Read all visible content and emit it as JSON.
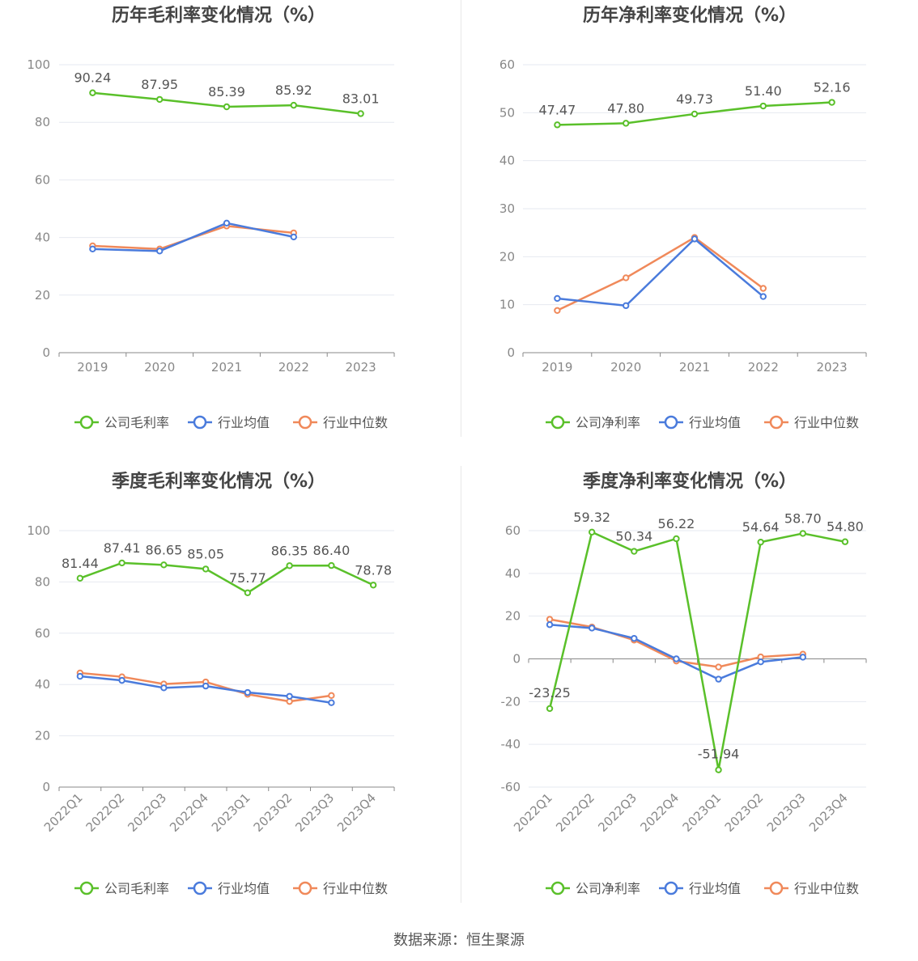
{
  "source": "数据来源：恒生聚源",
  "colors": {
    "company": "#5ac02a",
    "industry_avg": "#4a7bdc",
    "industry_median": "#f0895a",
    "axis": "#888888",
    "grid": "#e6e9f0",
    "title": "#444444",
    "label": "#555555"
  },
  "chart_data": [
    {
      "type": "line",
      "title": "历年毛利率变化情况（%）",
      "categories": [
        "2019",
        "2020",
        "2021",
        "2022",
        "2023"
      ],
      "ylim": [
        0,
        100
      ],
      "yticks": [
        "0",
        "20",
        "40",
        "60",
        "80",
        "100"
      ],
      "legend": "bottom",
      "series": [
        {
          "name": "公司毛利率",
          "values": [
            90.24,
            87.95,
            85.39,
            85.92,
            83.01
          ],
          "labels": [
            "90.24",
            "87.95",
            "85.39",
            "85.92",
            "83.01"
          ]
        },
        {
          "name": "行业均值",
          "values": [
            36.0,
            35.3,
            45.0,
            40.2,
            null
          ]
        },
        {
          "name": "行业中位数",
          "values": [
            37.1,
            36.0,
            44.0,
            41.6,
            null
          ]
        }
      ]
    },
    {
      "type": "line",
      "title": "历年净利率变化情况（%）",
      "categories": [
        "2019",
        "2020",
        "2021",
        "2022",
        "2023"
      ],
      "ylim": [
        0,
        60
      ],
      "yticks": [
        "0",
        "10",
        "20",
        "30",
        "40",
        "50",
        "60"
      ],
      "legend": "bottom",
      "series": [
        {
          "name": "公司净利率",
          "values": [
            47.47,
            47.8,
            49.73,
            51.4,
            52.16
          ],
          "labels": [
            "47.47",
            "47.80",
            "49.73",
            "51.40",
            "52.16"
          ]
        },
        {
          "name": "行业均值",
          "values": [
            11.3,
            9.8,
            23.7,
            11.7,
            null
          ]
        },
        {
          "name": "行业中位数",
          "values": [
            8.8,
            15.6,
            24.0,
            13.4,
            null
          ]
        }
      ]
    },
    {
      "type": "line",
      "title": "季度毛利率变化情况（%）",
      "categories": [
        "2022Q1",
        "2022Q2",
        "2022Q3",
        "2022Q4",
        "2023Q1",
        "2023Q2",
        "2023Q3",
        "2023Q4"
      ],
      "ylim": [
        0,
        100
      ],
      "yticks": [
        "0",
        "20",
        "40",
        "60",
        "80",
        "100"
      ],
      "legend": "bottom",
      "series": [
        {
          "name": "公司毛利率",
          "values": [
            81.44,
            87.41,
            86.65,
            85.05,
            75.77,
            86.35,
            86.4,
            78.78
          ],
          "labels": [
            "81.44",
            "87.41",
            "86.65",
            "85.05",
            "75.77",
            "86.35",
            "86.40",
            "78.78"
          ]
        },
        {
          "name": "行业均值",
          "values": [
            43.2,
            41.6,
            38.7,
            39.4,
            36.9,
            35.4,
            32.9,
            null
          ]
        },
        {
          "name": "行业中位数",
          "values": [
            44.5,
            43.0,
            40.2,
            41.0,
            36.2,
            33.4,
            35.7,
            null
          ]
        }
      ]
    },
    {
      "type": "line",
      "title": "季度净利率变化情况（%）",
      "categories": [
        "2022Q1",
        "2022Q2",
        "2022Q3",
        "2022Q4",
        "2023Q1",
        "2023Q2",
        "2023Q3",
        "2023Q4"
      ],
      "ylim": [
        -60,
        60
      ],
      "yticks": [
        "-60",
        "-40",
        "-20",
        "0",
        "20",
        "40",
        "60"
      ],
      "legend": "bottom",
      "series": [
        {
          "name": "公司净利率",
          "values": [
            -23.25,
            59.32,
            50.34,
            56.22,
            -51.94,
            54.64,
            58.7,
            54.8
          ],
          "labels": [
            "-23.25",
            "59.32",
            "50.34",
            "56.22",
            "-51.94",
            "54.64",
            "58.70",
            "54.80"
          ]
        },
        {
          "name": "行业均值",
          "values": [
            16.0,
            14.4,
            9.6,
            0.0,
            -9.5,
            -1.4,
            0.8,
            null
          ]
        },
        {
          "name": "行业中位数",
          "values": [
            18.5,
            14.9,
            8.8,
            -1.0,
            -3.8,
            0.9,
            2.2,
            null
          ]
        }
      ]
    }
  ]
}
